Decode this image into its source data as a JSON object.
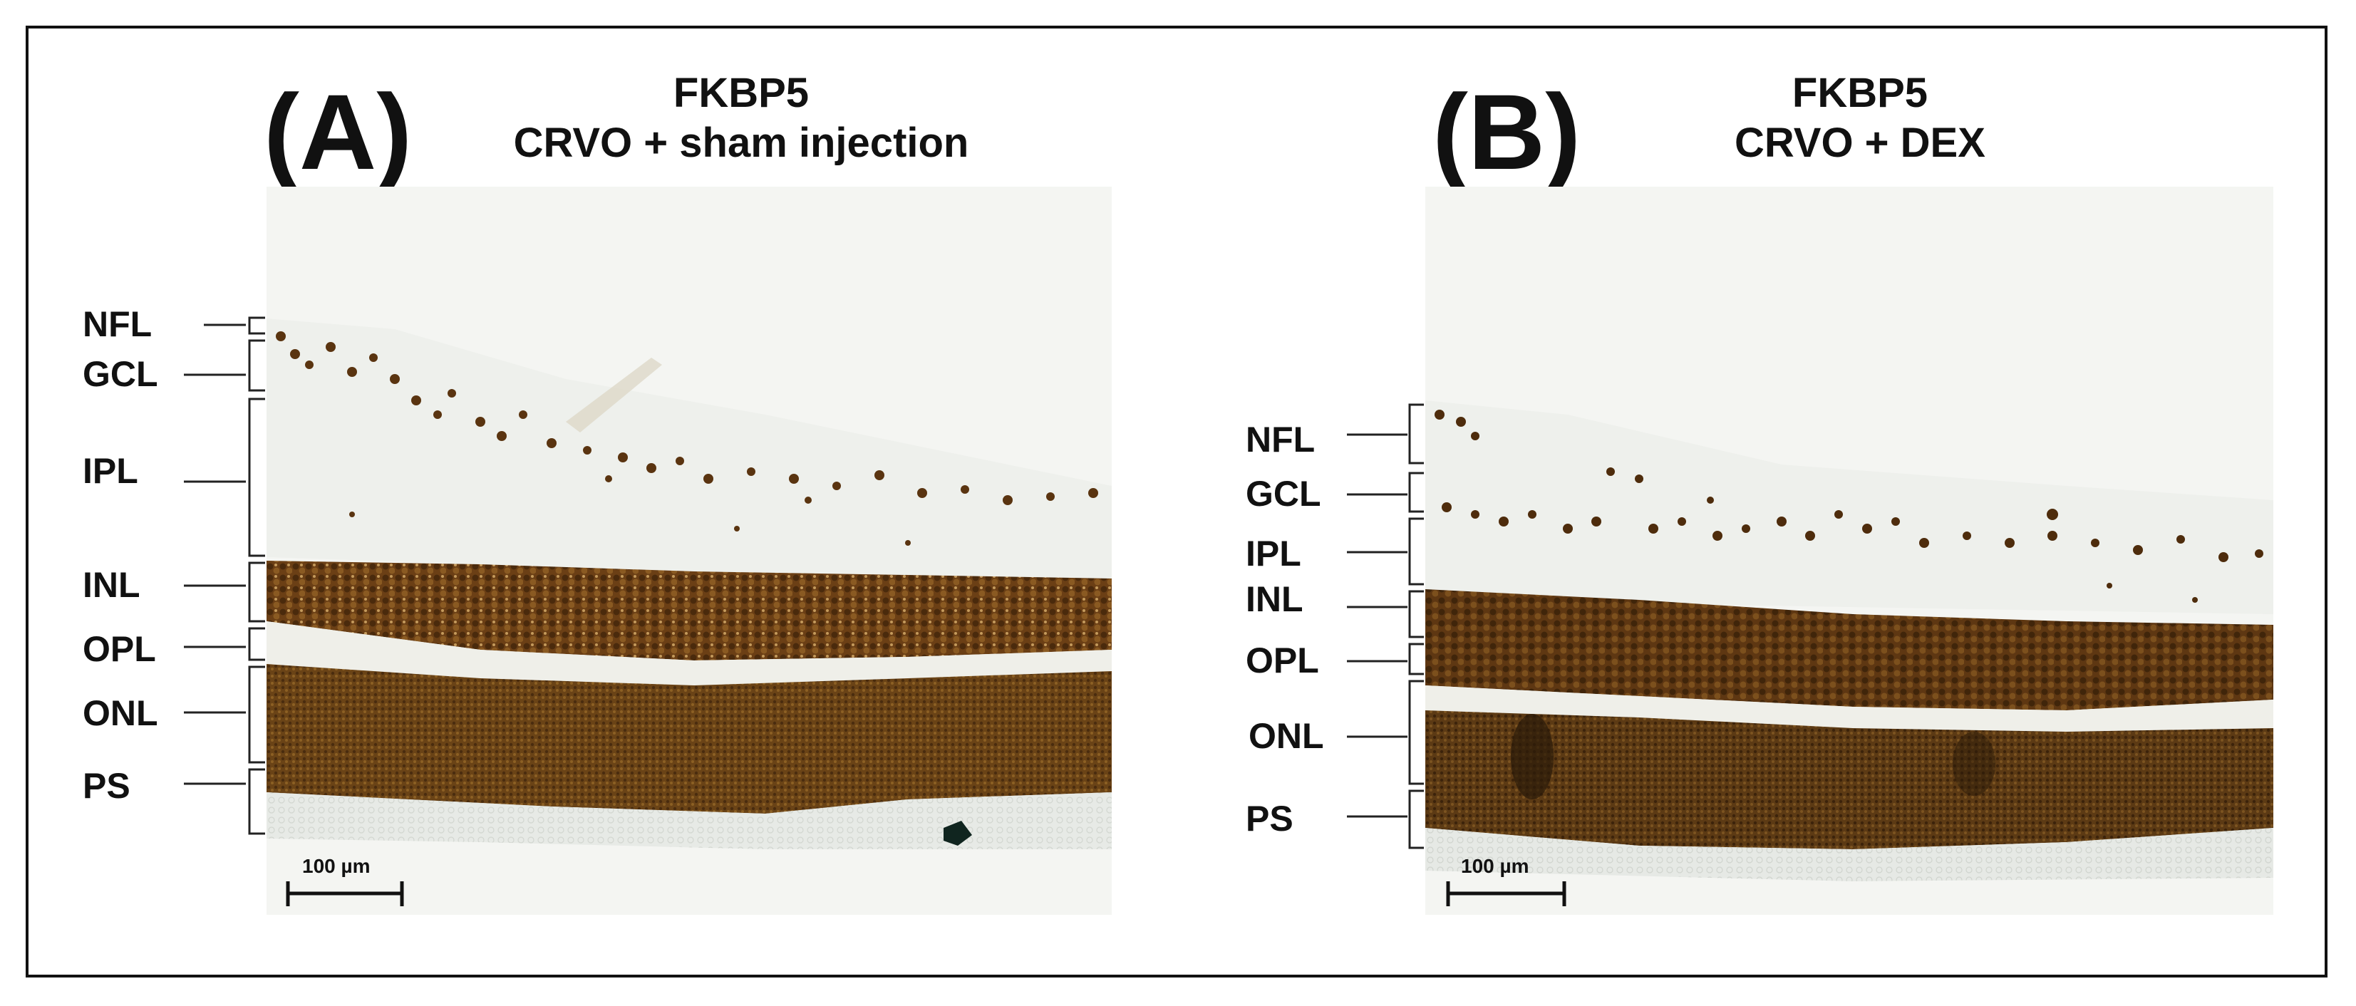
{
  "panels": [
    {
      "letter": "(A)",
      "title_line1": "FKBP5",
      "title_line2": "CRVO + sham injection",
      "layers": [
        "NFL",
        "GCL",
        "IPL",
        "INL",
        "OPL",
        "ONL",
        "PS"
      ],
      "scale_bar": "100 µm"
    },
    {
      "letter": "(B)",
      "title_line1": "FKBP5",
      "title_line2": "CRVO + DEX",
      "layers": [
        "NFL",
        "GCL",
        "IPL",
        "INL",
        "OPL",
        "ONL",
        "PS"
      ],
      "scale_bar": "100 µm"
    }
  ],
  "colors": {
    "background_tissue": "#f2f4f1",
    "stain_dark": "#5a3612",
    "stain_mid": "#7a4c1c",
    "stain_light": "#b98a4c",
    "photoreceptor_segment": "#e6e8e4"
  }
}
